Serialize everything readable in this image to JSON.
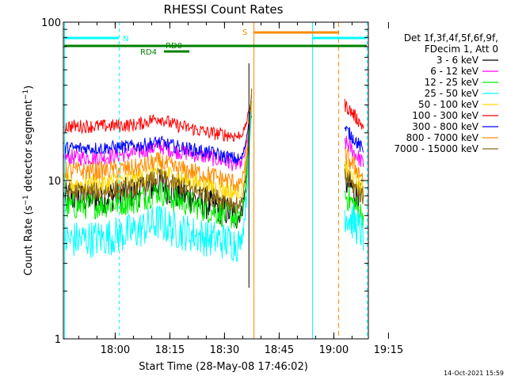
{
  "chart_data": {
    "type": "line",
    "title": "RHESSI Count Rates",
    "xlabel": "Start Time (28-May-08 17:46:02)",
    "ylabel_main": "Count Rate (s",
    "ylabel_sup1": "−1",
    "ylabel_mid": " detector segment",
    "ylabel_sup2": "−1",
    "ylabel_end": ")",
    "y_scale": "log",
    "ylim": [
      1,
      100
    ],
    "xlim_min": [
      0,
      82
    ],
    "x_ticks": [
      {
        "label": "18:00",
        "min": 14
      },
      {
        "label": "18:15",
        "min": 29
      },
      {
        "label": "18:30",
        "min": 44
      },
      {
        "label": "18:45",
        "min": 59
      },
      {
        "label": "19:00",
        "min": 74
      },
      {
        "label": "19:15",
        "min": 89
      }
    ],
    "y_ticks": [
      {
        "label": "1",
        "value": 1
      },
      {
        "label": "10",
        "value": 10
      },
      {
        "label": "100",
        "value": 100
      }
    ],
    "legend_header": [
      "Det 1f,3f,4f,5f,6f,9f,",
      "FDecim 1, Att 0"
    ],
    "series": [
      {
        "name": "3 - 6 keV",
        "color": "#000000",
        "base": [
          7.8,
          7.8,
          8.5,
          9.5,
          8.5,
          7.0,
          6.0
        ],
        "after": 8.0,
        "noise": 0.12
      },
      {
        "name": "6 - 12 keV",
        "color": "#ff00ff",
        "base": [
          14,
          14,
          15,
          16.5,
          15.5,
          14,
          12.5
        ],
        "after": 14,
        "noise": 0.06
      },
      {
        "name": "12 - 25 keV",
        "color": "#00ee00",
        "base": [
          6.8,
          7.0,
          7.5,
          8.6,
          7.6,
          6.5,
          5.8
        ],
        "after": 6.5,
        "noise": 0.1
      },
      {
        "name": "25 - 50 keV",
        "color": "#00ffff",
        "base": [
          4.2,
          4.3,
          4.8,
          5.5,
          4.9,
          4.3,
          4.0
        ],
        "after": 5.0,
        "noise": 0.14
      },
      {
        "name": "50 - 100 keV",
        "color": "#ffd700",
        "base": [
          9.5,
          9.5,
          10.2,
          11.5,
          10.5,
          9.2,
          8.2
        ],
        "after": 9.5,
        "noise": 0.08
      },
      {
        "name": "100 - 300 keV",
        "color": "#ff0000",
        "base": [
          22,
          22,
          22.5,
          25,
          22.5,
          20,
          19
        ],
        "after": 24,
        "noise": 0.05
      },
      {
        "name": "300 - 800 keV",
        "color": "#0000ff",
        "base": [
          16,
          16,
          16.5,
          17.5,
          16.5,
          15,
          13.5
        ],
        "after": 17,
        "noise": 0.05
      },
      {
        "name": "800 - 7000 keV",
        "color": "#ff8c00",
        "base": [
          11.5,
          11.5,
          12,
          13.2,
          12,
          10.8,
          9.5
        ],
        "after": 11.5,
        "noise": 0.07
      },
      {
        "name": "7000 - 15000 keV",
        "color": "#8b6914",
        "base": [
          8.5,
          8.5,
          9,
          10.5,
          9.5,
          8.0,
          7.0
        ],
        "after": 8.5,
        "noise": 0.07
      }
    ],
    "annotations": [
      {
        "label": "N",
        "color": "#00ffff"
      },
      {
        "label": "RD0",
        "color": "#008000"
      },
      {
        "label": "RD4",
        "color": "#008000"
      },
      {
        "label": "S",
        "color": "#ff8c00"
      }
    ]
  },
  "footer": {
    "date": "14-Oct-2021 15:59"
  }
}
